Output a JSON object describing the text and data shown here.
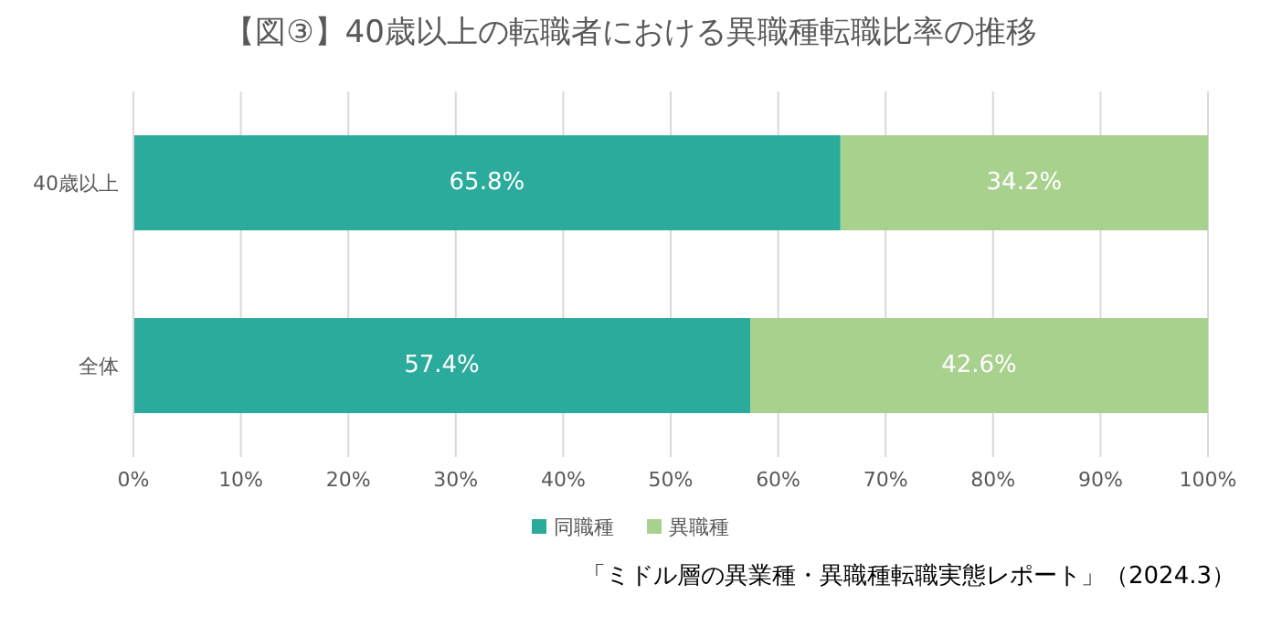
{
  "chart_data": {
    "type": "bar",
    "orientation": "horizontal",
    "stacked": true,
    "title": "【図③】40歳以上の転職者における異職種転職比率の推移",
    "categories": [
      "40歳以上",
      "全体"
    ],
    "series": [
      {
        "name": "同職種",
        "color": "#2aab9c",
        "values": [
          65.8,
          57.4
        ],
        "value_labels": [
          "65.8%",
          "57.4%"
        ]
      },
      {
        "name": "異職種",
        "color": "#a9d18e",
        "values": [
          34.2,
          42.6
        ],
        "value_labels": [
          "34.2%",
          "42.6%"
        ]
      }
    ],
    "xlim": [
      0,
      100
    ],
    "xticks": [
      {
        "value": 0,
        "label": "0%"
      },
      {
        "value": 10,
        "label": "10%"
      },
      {
        "value": 20,
        "label": "20%"
      },
      {
        "value": 30,
        "label": "30%"
      },
      {
        "value": 40,
        "label": "40%"
      },
      {
        "value": 50,
        "label": "50%"
      },
      {
        "value": 60,
        "label": "60%"
      },
      {
        "value": 70,
        "label": "70%"
      },
      {
        "value": 80,
        "label": "80%"
      },
      {
        "value": 90,
        "label": "90%"
      },
      {
        "value": 100,
        "label": "100%"
      }
    ],
    "grid": "x",
    "legend": "bottom",
    "annotations": [
      "「ミドル層の異業種・異職種転職実態レポート」（2024.3）"
    ]
  }
}
